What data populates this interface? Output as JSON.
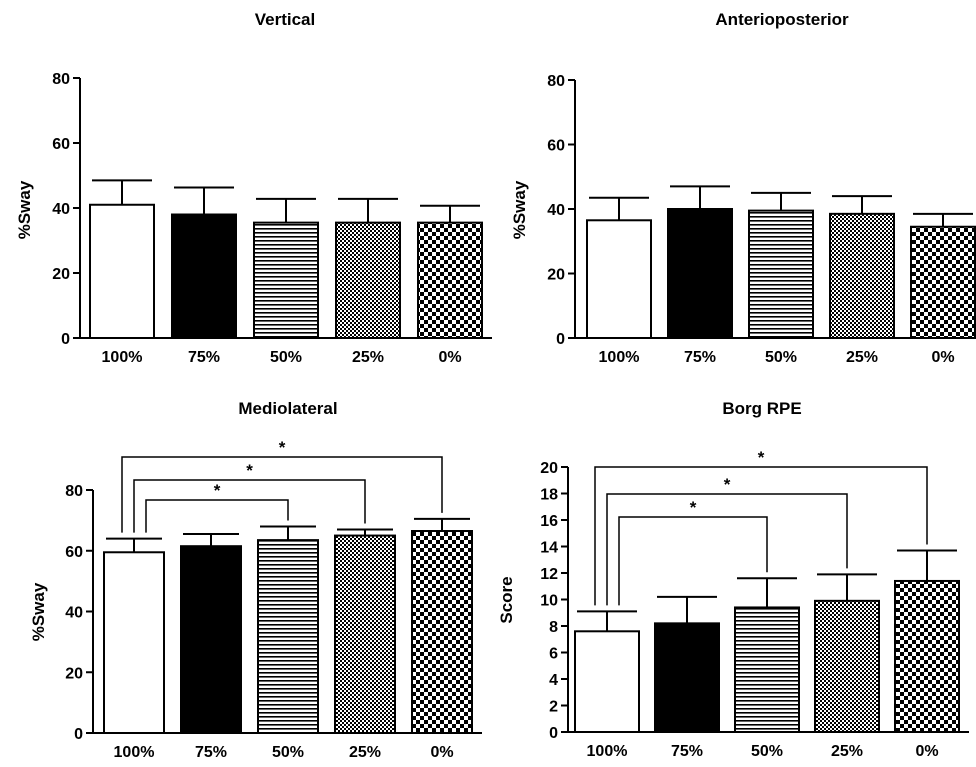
{
  "chart_data": [
    {
      "type": "bar",
      "title": "Vertical",
      "ylabel": "%Sway",
      "xlabel": "",
      "categories": [
        "100%",
        "75%",
        "50%",
        "25%",
        "0%"
      ],
      "values": [
        41,
        38,
        35.5,
        35.5,
        35.5
      ],
      "errors": [
        7.5,
        8.3,
        7.3,
        7.3,
        5.2
      ],
      "ylim": [
        0,
        80
      ],
      "yticks": [
        0,
        20,
        40,
        60,
        80
      ],
      "significance": [],
      "fills": [
        "white",
        "black",
        "hlines",
        "dots",
        "checker"
      ]
    },
    {
      "type": "bar",
      "title": "Anterioposterior",
      "ylabel": "%Sway",
      "xlabel": "",
      "categories": [
        "100%",
        "75%",
        "50%",
        "25%",
        "0%"
      ],
      "values": [
        36.5,
        40,
        39.5,
        38.5,
        34.5
      ],
      "errors": [
        7,
        7,
        5.5,
        5.5,
        4
      ],
      "ylim": [
        0,
        80
      ],
      "yticks": [
        0,
        20,
        40,
        60,
        80
      ],
      "significance": [],
      "fills": [
        "white",
        "black",
        "hlines",
        "dots",
        "checker"
      ]
    },
    {
      "type": "bar",
      "title": "Mediolateral",
      "ylabel": "%Sway",
      "xlabel": "",
      "categories": [
        "100%",
        "75%",
        "50%",
        "25%",
        "0%"
      ],
      "values": [
        59.5,
        61.5,
        63.5,
        65,
        66.5
      ],
      "errors": [
        4.5,
        4,
        4.5,
        2,
        4
      ],
      "ylim": [
        0,
        80
      ],
      "yticks": [
        0,
        20,
        40,
        60,
        80
      ],
      "significance": [
        {
          "from": 0,
          "to": 2,
          "label": "*"
        },
        {
          "from": 0,
          "to": 3,
          "label": "*"
        },
        {
          "from": 0,
          "to": 4,
          "label": "*"
        }
      ],
      "fills": [
        "white",
        "black",
        "hlines",
        "dots",
        "checker"
      ]
    },
    {
      "type": "bar",
      "title": "Borg RPE",
      "ylabel": "Score",
      "xlabel": "",
      "categories": [
        "100%",
        "75%",
        "50%",
        "25%",
        "0%"
      ],
      "values": [
        7.6,
        8.2,
        9.4,
        9.9,
        11.4
      ],
      "errors": [
        1.5,
        2,
        2.2,
        2,
        2.3
      ],
      "ylim": [
        0,
        20
      ],
      "yticks": [
        0,
        2,
        4,
        6,
        8,
        10,
        12,
        14,
        16,
        18,
        20
      ],
      "significance": [
        {
          "from": 0,
          "to": 2,
          "label": "*"
        },
        {
          "from": 0,
          "to": 3,
          "label": "*"
        },
        {
          "from": 0,
          "to": 4,
          "label": "*"
        }
      ],
      "fills": [
        "white",
        "black",
        "hlines",
        "dots",
        "checker"
      ]
    }
  ]
}
